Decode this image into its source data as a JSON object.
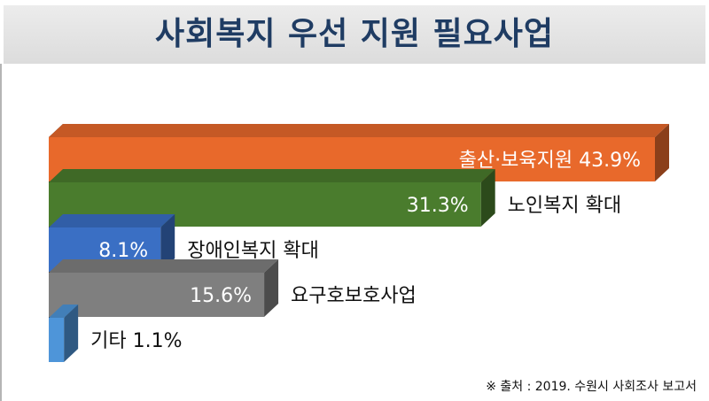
{
  "title": "사회복지 우선 지원 필요사업",
  "source": "※ 출처 : 2019. 수원시 사회조사 보고서",
  "colors": {
    "title_text": "#1f3c63",
    "bar_orange": "#e8692b",
    "bar_green": "#4a7c2d",
    "bar_blue": "#3a6fc4",
    "bar_gray": "#7f7f7f",
    "bar_lightblue": "#4e95d9"
  },
  "chart_data": {
    "type": "bar",
    "orientation": "horizontal",
    "title": "사회복지 우선 지원 필요사업",
    "unit": "%",
    "xlim": [
      0,
      43.9
    ],
    "categories": [
      "출산·보육지원",
      "노인복지 확대",
      "장애인복지 확대",
      "요구호보호사업",
      "기타"
    ],
    "values": [
      43.9,
      31.3,
      8.1,
      15.6,
      1.1
    ],
    "value_labels": [
      "43.9%",
      "31.3%",
      "8.1%",
      "15.6%",
      "1.1%"
    ],
    "colors": [
      "#e8692b",
      "#4a7c2d",
      "#3a6fc4",
      "#7f7f7f",
      "#4e95d9"
    ],
    "label_placement": [
      "inside",
      "outside",
      "outside",
      "outside",
      "outside"
    ],
    "grid": false,
    "legend": "none"
  }
}
